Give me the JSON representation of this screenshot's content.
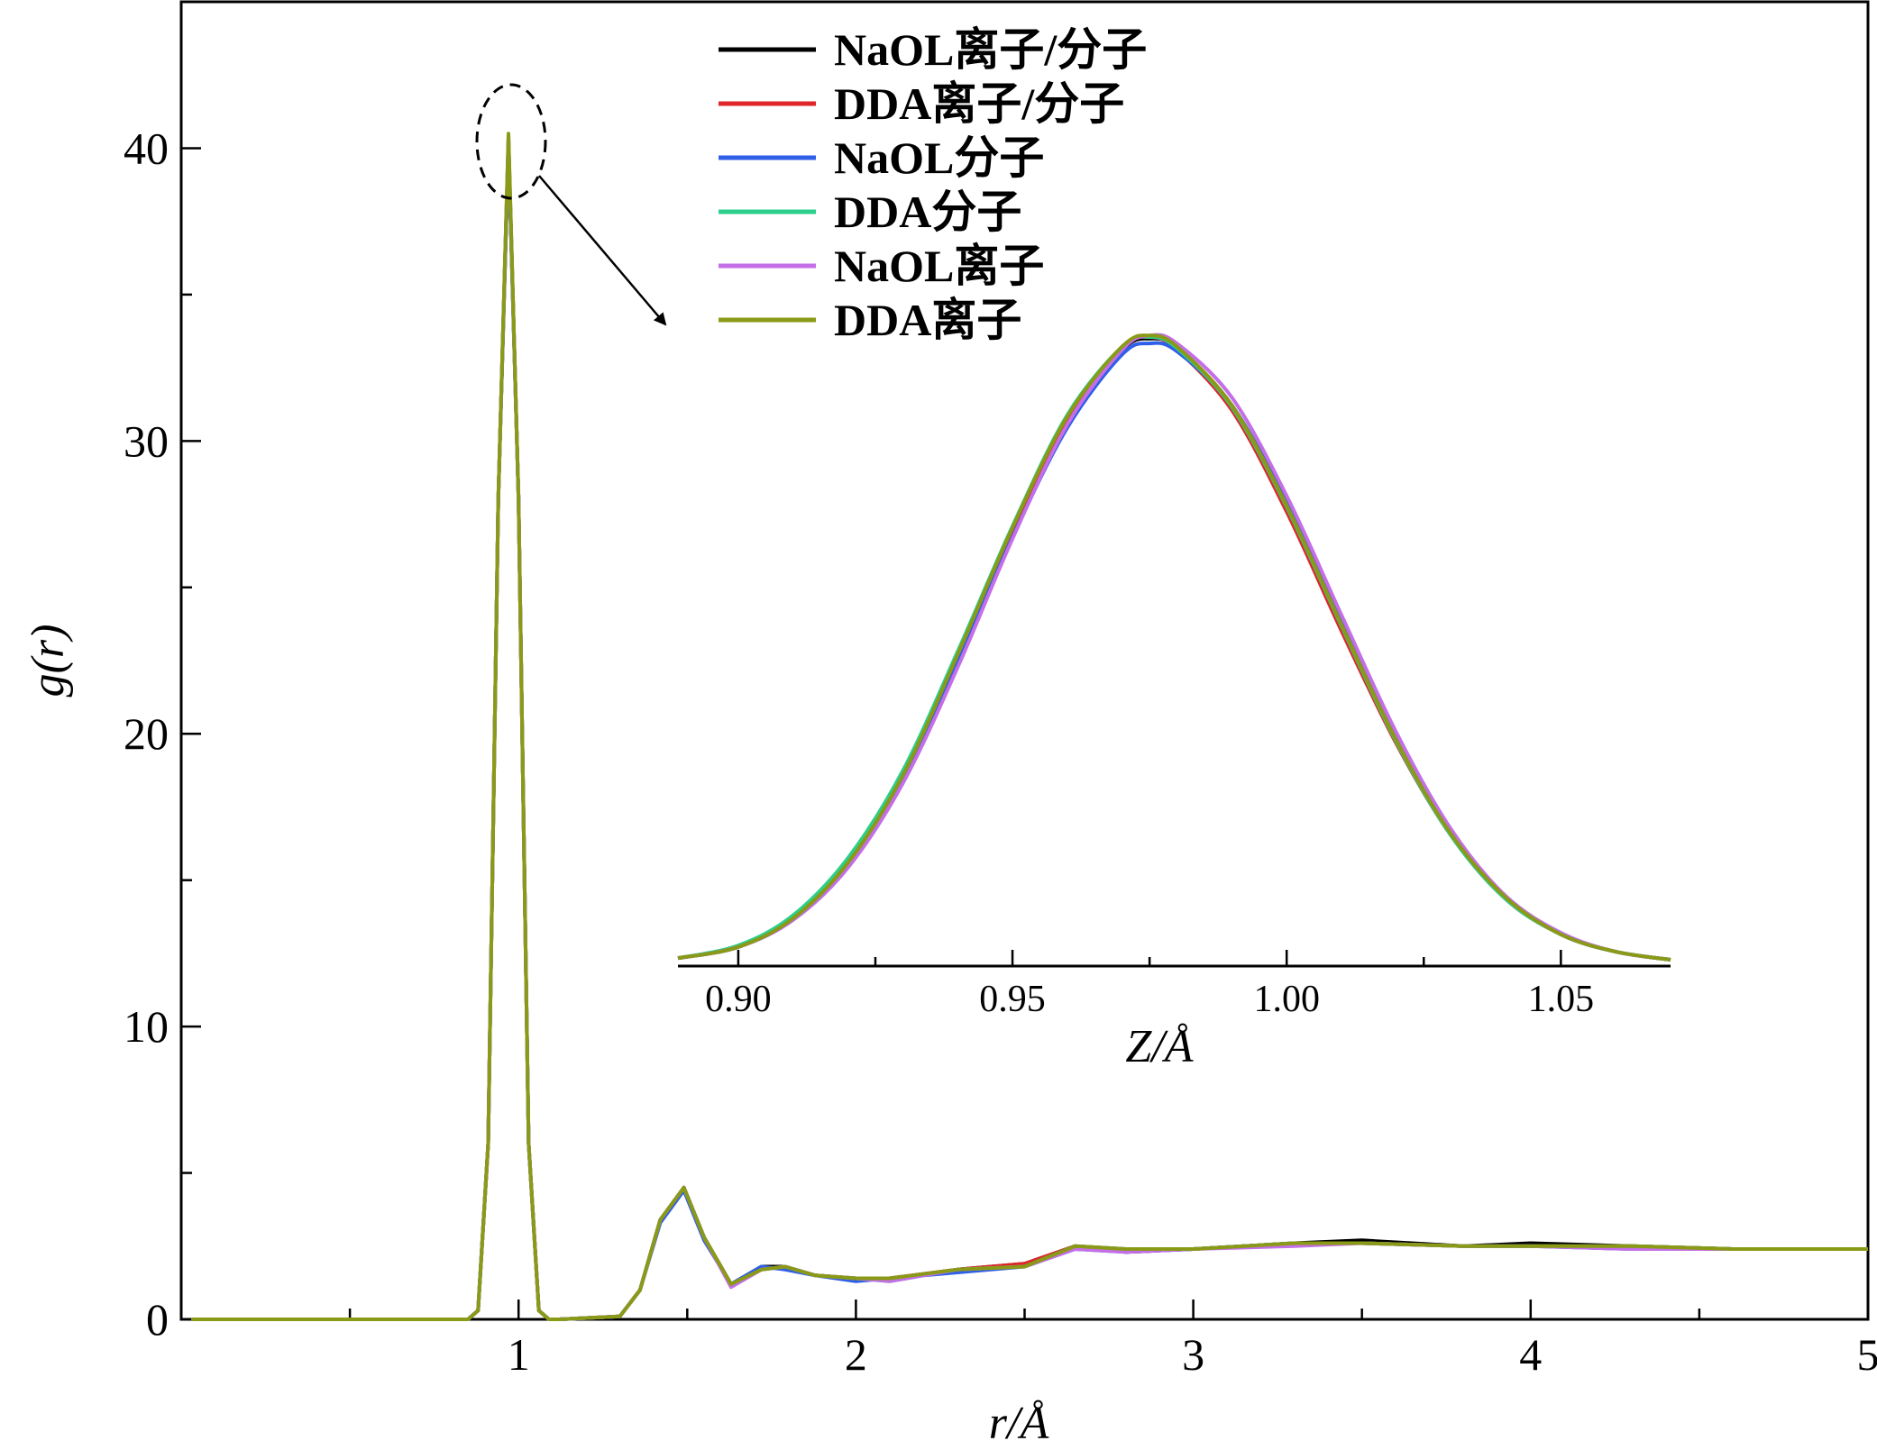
{
  "chart_data": [
    {
      "type": "line",
      "xlabel": "r/Å",
      "ylabel": "g(r)",
      "xlim": [
        0,
        5
      ],
      "ylim": [
        0,
        45
      ],
      "x_ticks": [
        1,
        2,
        3,
        4,
        5
      ],
      "y_ticks": [
        0,
        10,
        20,
        30,
        40
      ],
      "x_tick_labels": [
        "1",
        "2",
        "3",
        "4",
        "5"
      ],
      "y_tick_labels": [
        "0",
        "10",
        "20",
        "30",
        "40"
      ],
      "grid": false,
      "legend_position": "top-center",
      "series": [
        {
          "name": "NaOL离子/分子",
          "color": "#000000",
          "x": [
            0.03,
            0.85,
            0.88,
            0.91,
            0.94,
            0.97,
            1.0,
            1.03,
            1.06,
            1.09,
            1.12,
            1.3,
            1.36,
            1.42,
            1.49,
            1.55,
            1.63,
            1.72,
            1.79,
            1.88,
            2.0,
            2.1,
            2.3,
            2.5,
            2.65,
            2.8,
            3.0,
            3.3,
            3.5,
            3.8,
            4.0,
            4.3,
            4.6,
            5.0
          ],
          "y": [
            0,
            0,
            0.3,
            6,
            28,
            40.2,
            28,
            6,
            0.3,
            0,
            0,
            0.1,
            1.0,
            3.4,
            4.5,
            2.8,
            1.2,
            1.8,
            1.8,
            1.5,
            1.4,
            1.4,
            1.7,
            1.9,
            2.5,
            2.3,
            2.4,
            2.6,
            2.7,
            2.5,
            2.6,
            2.5,
            2.4,
            2.4
          ]
        },
        {
          "name": "DDA离子/分子",
          "color": "#e0252a",
          "x": [
            0.03,
            0.85,
            0.88,
            0.91,
            0.94,
            0.97,
            1.0,
            1.03,
            1.06,
            1.09,
            1.12,
            1.3,
            1.36,
            1.42,
            1.49,
            1.55,
            1.63,
            1.72,
            1.79,
            1.88,
            2.0,
            2.1,
            2.3,
            2.5,
            2.65,
            2.8,
            3.0,
            3.3,
            3.5,
            3.8,
            4.0,
            4.3,
            4.6,
            5.0
          ],
          "y": [
            0,
            0,
            0.3,
            6,
            28,
            40.3,
            28,
            6,
            0.3,
            0,
            0,
            0.1,
            1.0,
            3.4,
            4.5,
            2.8,
            1.2,
            1.7,
            1.8,
            1.5,
            1.4,
            1.4,
            1.7,
            1.9,
            2.5,
            2.4,
            2.4,
            2.6,
            2.6,
            2.5,
            2.5,
            2.5,
            2.4,
            2.4
          ]
        },
        {
          "name": "NaOL分子",
          "color": "#2f5ee8",
          "x": [
            0.03,
            0.85,
            0.88,
            0.91,
            0.94,
            0.97,
            1.0,
            1.03,
            1.06,
            1.09,
            1.12,
            1.3,
            1.36,
            1.42,
            1.49,
            1.55,
            1.63,
            1.72,
            1.79,
            1.88,
            2.0,
            2.1,
            2.3,
            2.5,
            2.65,
            2.8,
            3.0,
            3.3,
            3.5,
            3.8,
            4.0,
            4.3,
            4.6,
            5.0
          ],
          "y": [
            0,
            0,
            0.3,
            6,
            28,
            40.0,
            28,
            6,
            0.3,
            0,
            0,
            0.1,
            1.0,
            3.3,
            4.4,
            2.7,
            1.2,
            1.8,
            1.7,
            1.5,
            1.3,
            1.4,
            1.6,
            1.8,
            2.4,
            2.3,
            2.4,
            2.6,
            2.6,
            2.5,
            2.5,
            2.4,
            2.4,
            2.4
          ]
        },
        {
          "name": "DDA分子",
          "color": "#2ccf8c",
          "x": [
            0.03,
            0.85,
            0.88,
            0.91,
            0.94,
            0.97,
            1.0,
            1.03,
            1.06,
            1.09,
            1.12,
            1.3,
            1.36,
            1.42,
            1.49,
            1.55,
            1.63,
            1.72,
            1.79,
            1.88,
            2.0,
            2.1,
            2.3,
            2.5,
            2.65,
            2.8,
            3.0,
            3.3,
            3.5,
            3.8,
            4.0,
            4.3,
            4.6,
            5.0
          ],
          "y": [
            0,
            0,
            0.3,
            6,
            28,
            40.3,
            28,
            6,
            0.3,
            0,
            0,
            0.1,
            1.0,
            3.4,
            4.5,
            2.8,
            1.2,
            1.7,
            1.8,
            1.5,
            1.4,
            1.3,
            1.7,
            1.8,
            2.5,
            2.4,
            2.4,
            2.6,
            2.6,
            2.5,
            2.5,
            2.5,
            2.4,
            2.4
          ]
        },
        {
          "name": "NaOL离子",
          "color": "#c46ee8",
          "x": [
            0.03,
            0.85,
            0.88,
            0.91,
            0.94,
            0.97,
            1.0,
            1.03,
            1.06,
            1.09,
            1.12,
            1.3,
            1.36,
            1.42,
            1.49,
            1.55,
            1.63,
            1.72,
            1.79,
            1.88,
            2.0,
            2.1,
            2.3,
            2.5,
            2.65,
            2.8,
            3.0,
            3.3,
            3.5,
            3.8,
            4.0,
            4.3,
            4.6,
            5.0
          ],
          "y": [
            0,
            0,
            0.3,
            6,
            28,
            40.4,
            28,
            6,
            0.3,
            0,
            0,
            0.1,
            1.0,
            3.4,
            4.5,
            2.8,
            1.1,
            1.7,
            1.8,
            1.5,
            1.4,
            1.3,
            1.7,
            1.8,
            2.4,
            2.3,
            2.4,
            2.5,
            2.6,
            2.5,
            2.5,
            2.4,
            2.4,
            2.4
          ]
        },
        {
          "name": "DDA离子",
          "color": "#8a9a16",
          "x": [
            0.03,
            0.85,
            0.88,
            0.91,
            0.94,
            0.97,
            1.0,
            1.03,
            1.06,
            1.09,
            1.12,
            1.3,
            1.36,
            1.42,
            1.49,
            1.55,
            1.63,
            1.72,
            1.79,
            1.88,
            2.0,
            2.1,
            2.3,
            2.5,
            2.65,
            2.8,
            3.0,
            3.3,
            3.5,
            3.8,
            4.0,
            4.3,
            4.6,
            5.0
          ],
          "y": [
            0,
            0,
            0.3,
            6,
            28,
            40.5,
            28,
            6,
            0.3,
            0,
            0,
            0.1,
            1.0,
            3.4,
            4.5,
            2.8,
            1.2,
            1.7,
            1.8,
            1.5,
            1.4,
            1.4,
            1.7,
            1.8,
            2.5,
            2.4,
            2.4,
            2.6,
            2.6,
            2.5,
            2.5,
            2.5,
            2.4,
            2.4
          ]
        }
      ],
      "annotation": {
        "type": "dashed-ellipse",
        "x": 0.97,
        "y": 40.2,
        "arrow_to": "inset"
      }
    },
    {
      "type": "line",
      "role": "inset",
      "xlabel": "Z/Å",
      "xlim": [
        0.889,
        1.07
      ],
      "x_ticks": [
        0.9,
        0.95,
        1.0,
        1.05
      ],
      "x_tick_labels": [
        "0.90",
        "0.95",
        "1.00",
        "1.05"
      ],
      "series": [
        {
          "name": "NaOL离子/分子",
          "color": "#000000",
          "x": [
            0.889,
            0.9,
            0.91,
            0.92,
            0.93,
            0.94,
            0.95,
            0.96,
            0.97,
            0.975,
            0.98,
            0.99,
            1.0,
            1.01,
            1.02,
            1.03,
            1.04,
            1.05,
            1.06,
            1.07
          ],
          "y": [
            0.5,
            1.2,
            3,
            6.5,
            12,
            19.5,
            27.5,
            34.5,
            38.8,
            39.5,
            38.9,
            35.3,
            29,
            21.5,
            14.2,
            8.3,
            4.3,
            2,
            0.9,
            0.4
          ]
        },
        {
          "name": "DDA离子/分子",
          "color": "#e0252a",
          "x": [
            0.889,
            0.9,
            0.91,
            0.92,
            0.93,
            0.94,
            0.95,
            0.96,
            0.97,
            0.975,
            0.98,
            0.99,
            1.0,
            1.01,
            1.02,
            1.03,
            1.04,
            1.05,
            1.06,
            1.07
          ],
          "y": [
            0.5,
            1.2,
            3,
            6.5,
            12,
            19.5,
            27.5,
            34.5,
            38.9,
            39.6,
            38.8,
            35,
            28.6,
            21.1,
            14,
            8.2,
            4.2,
            2,
            0.9,
            0.4
          ]
        },
        {
          "name": "NaOL分子",
          "color": "#2f5ee8",
          "x": [
            0.889,
            0.9,
            0.91,
            0.92,
            0.93,
            0.94,
            0.95,
            0.96,
            0.97,
            0.975,
            0.98,
            0.99,
            1.0,
            1.01,
            1.02,
            1.03,
            1.04,
            1.05,
            1.06,
            1.07
          ],
          "y": [
            0.5,
            1.2,
            3,
            6.4,
            11.8,
            19.1,
            27,
            33.9,
            38.5,
            39.2,
            38.7,
            35.3,
            29.2,
            21.8,
            14.4,
            8.4,
            4.3,
            2,
            0.9,
            0.4
          ]
        },
        {
          "name": "DDA分子",
          "color": "#2ccf8c",
          "x": [
            0.889,
            0.9,
            0.91,
            0.92,
            0.93,
            0.94,
            0.95,
            0.96,
            0.97,
            0.975,
            0.98,
            0.99,
            1.0,
            1.01,
            1.02,
            1.03,
            1.04,
            1.05,
            1.06,
            1.07
          ],
          "y": [
            0.5,
            1.3,
            3.2,
            6.8,
            12.3,
            19.8,
            27.7,
            34.7,
            39,
            39.6,
            38.9,
            35.2,
            28.9,
            21.4,
            14.1,
            8.2,
            4.2,
            2,
            0.9,
            0.4
          ]
        },
        {
          "name": "NaOL离子",
          "color": "#c46ee8",
          "x": [
            0.889,
            0.9,
            0.91,
            0.92,
            0.93,
            0.94,
            0.95,
            0.96,
            0.97,
            0.975,
            0.98,
            0.99,
            1.0,
            1.01,
            1.02,
            1.03,
            1.04,
            1.05,
            1.06,
            1.07
          ],
          "y": [
            0.5,
            1.2,
            2.9,
            6.2,
            11.5,
            18.8,
            26.9,
            34.1,
            38.8,
            39.7,
            39.2,
            35.8,
            29.6,
            22.1,
            14.7,
            8.6,
            4.4,
            2.1,
            0.9,
            0.4
          ]
        },
        {
          "name": "DDA离子",
          "color": "#8a9a16",
          "x": [
            0.889,
            0.9,
            0.91,
            0.92,
            0.93,
            0.94,
            0.95,
            0.96,
            0.97,
            0.975,
            0.98,
            0.99,
            1.0,
            1.01,
            1.02,
            1.03,
            1.04,
            1.05,
            1.06,
            1.07
          ],
          "y": [
            0.5,
            1.2,
            3,
            6.5,
            12,
            19.6,
            27.6,
            34.6,
            39,
            39.7,
            39,
            35.3,
            29,
            21.5,
            14.2,
            8.3,
            4.3,
            2,
            0.9,
            0.4
          ]
        }
      ]
    }
  ]
}
